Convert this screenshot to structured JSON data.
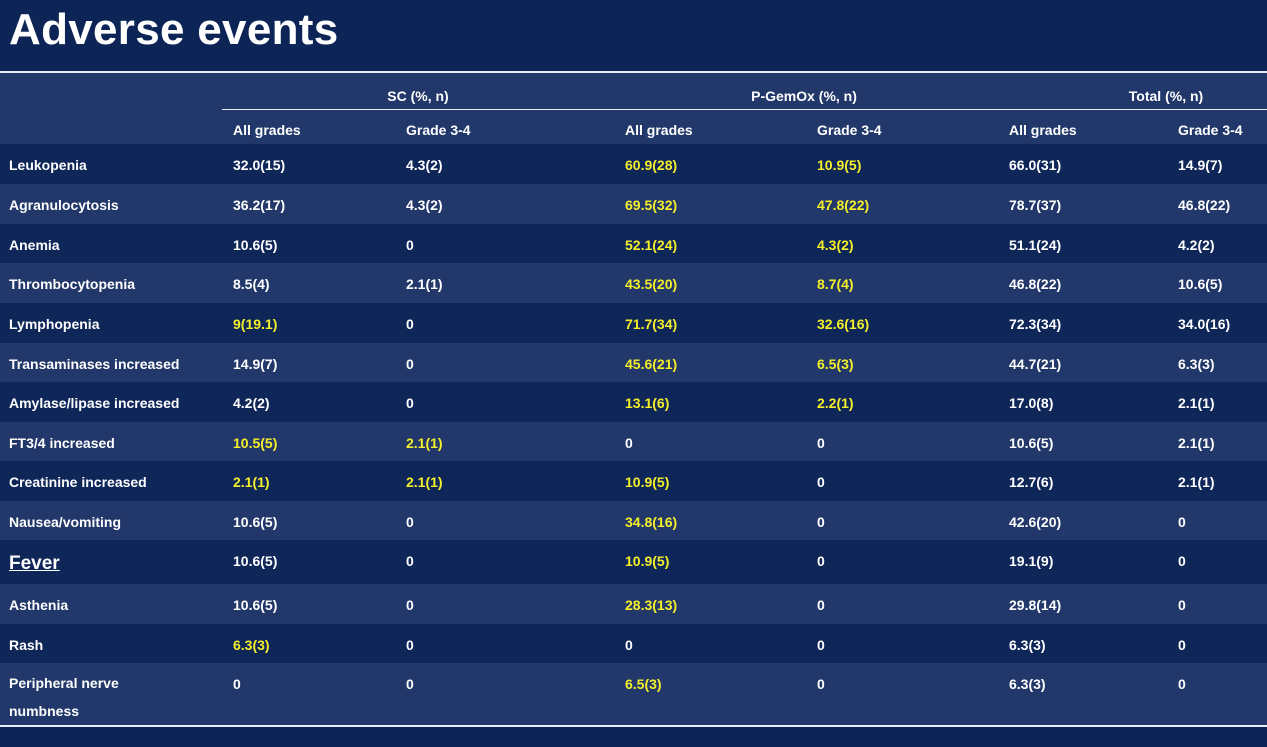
{
  "title": "Adverse events",
  "table": {
    "groups": [
      {
        "label": "SC (%, n)",
        "sub": [
          "All grades",
          "Grade 3-4"
        ]
      },
      {
        "label": "P-GemOx (%, n)",
        "sub": [
          "All grades",
          "Grade 3-4"
        ]
      },
      {
        "label": "Total (%, n)",
        "sub": [
          "All grades",
          "Grade 3-4"
        ]
      }
    ],
    "rows": [
      {
        "name": "Leukopenia",
        "values": [
          "32.0(15)",
          "4.3(2)",
          "60.9(28)",
          "10.9(5)",
          "66.0(31)",
          "14.9(7)"
        ],
        "highlight": [
          false,
          false,
          true,
          true,
          false,
          false
        ]
      },
      {
        "name": "Agranulocytosis",
        "values": [
          "36.2(17)",
          "4.3(2)",
          "69.5(32)",
          "47.8(22)",
          "78.7(37)",
          "46.8(22)"
        ],
        "highlight": [
          false,
          false,
          true,
          true,
          false,
          false
        ]
      },
      {
        "name": "Anemia",
        "values": [
          "10.6(5)",
          "0",
          "52.1(24)",
          "4.3(2)",
          "51.1(24)",
          "4.2(2)"
        ],
        "highlight": [
          false,
          false,
          true,
          true,
          false,
          false
        ]
      },
      {
        "name": "Thrombocytopenia",
        "values": [
          "8.5(4)",
          "2.1(1)",
          "43.5(20)",
          "8.7(4)",
          "46.8(22)",
          "10.6(5)"
        ],
        "highlight": [
          false,
          false,
          true,
          true,
          false,
          false
        ]
      },
      {
        "name": "Lymphopenia",
        "values": [
          "9(19.1)",
          "0",
          "71.7(34)",
          "32.6(16)",
          "72.3(34)",
          "34.0(16)"
        ],
        "highlight": [
          true,
          false,
          true,
          true,
          false,
          false
        ]
      },
      {
        "name": "Transaminases increased",
        "values": [
          "14.9(7)",
          "0",
          "45.6(21)",
          "6.5(3)",
          "44.7(21)",
          "6.3(3)"
        ],
        "highlight": [
          false,
          false,
          true,
          true,
          false,
          false
        ]
      },
      {
        "name": "Amylase/lipase increased",
        "values": [
          "4.2(2)",
          "0",
          "13.1(6)",
          "2.2(1)",
          "17.0(8)",
          "2.1(1)"
        ],
        "highlight": [
          false,
          false,
          true,
          true,
          false,
          false
        ]
      },
      {
        "name": "FT3/4 increased",
        "values": [
          "10.5(5)",
          "2.1(1)",
          "0",
          "0",
          "10.6(5)",
          "2.1(1)"
        ],
        "highlight": [
          true,
          true,
          false,
          false,
          false,
          false
        ]
      },
      {
        "name": "Creatinine increased",
        "values": [
          "2.1(1)",
          "2.1(1)",
          "10.9(5)",
          "0",
          "12.7(6)",
          "2.1(1)"
        ],
        "highlight": [
          true,
          true,
          true,
          false,
          false,
          false
        ]
      },
      {
        "name": "Nausea/vomiting",
        "values": [
          "10.6(5)",
          "0",
          "34.8(16)",
          "0",
          "42.6(20)",
          "0"
        ],
        "highlight": [
          false,
          false,
          true,
          false,
          false,
          false
        ]
      },
      {
        "name": "Fever",
        "values": [
          "10.6(5)",
          "0",
          "10.9(5)",
          "0",
          "19.1(9)",
          "0"
        ],
        "highlight": [
          false,
          false,
          true,
          false,
          false,
          false
        ]
      },
      {
        "name": "Asthenia",
        "values": [
          "10.6(5)",
          "0",
          "28.3(13)",
          "0",
          "29.8(14)",
          "0"
        ],
        "highlight": [
          false,
          false,
          true,
          false,
          false,
          false
        ]
      },
      {
        "name": "Rash",
        "values": [
          "6.3(3)",
          "0",
          "0",
          "0",
          "6.3(3)",
          "0"
        ],
        "highlight": [
          true,
          false,
          false,
          false,
          false,
          false
        ]
      },
      {
        "name": "Peripheral nerve numbness",
        "values": [
          "0",
          "0",
          "6.5(3)",
          "0",
          "6.3(3)",
          "0"
        ],
        "highlight": [
          false,
          false,
          true,
          false,
          false,
          false
        ]
      }
    ]
  }
}
